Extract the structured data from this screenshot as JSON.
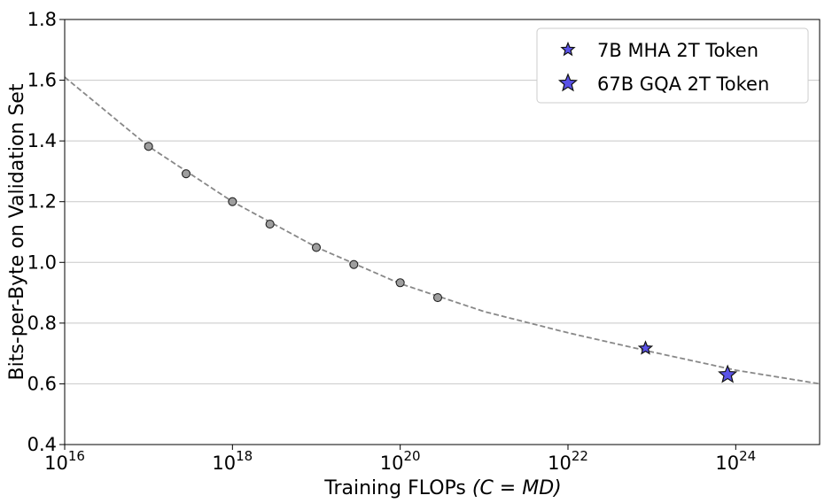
{
  "chart_data": {
    "type": "scatter",
    "title": "",
    "xlabel": "Training FLOPs",
    "xlabel_math": "(C = MD)",
    "ylabel": "Bits-per-Byte on Validation Set",
    "x_scale": "log",
    "xlim": [
      1e+16,
      1e+25
    ],
    "ylim": [
      0.4,
      1.8
    ],
    "x_ticks": [
      {
        "base": "10",
        "exp": "16",
        "value": 1e+16
      },
      {
        "base": "10",
        "exp": "18",
        "value": 1e+18
      },
      {
        "base": "10",
        "exp": "20",
        "value": 1e+20
      },
      {
        "base": "10",
        "exp": "22",
        "value": 1e+22
      },
      {
        "base": "10",
        "exp": "24",
        "value": 1e+24
      }
    ],
    "y_ticks": [
      "0.4",
      "0.6",
      "0.8",
      "1.0",
      "1.2",
      "1.4",
      "1.6",
      "1.8"
    ],
    "grid": "horizontal",
    "legend_position": "top-right",
    "fit_curve": {
      "style": "dashed",
      "color": "#888888",
      "points": [
        {
          "x": 1e+16,
          "y": 1.61
        },
        {
          "x": 1e+17,
          "y": 1.382
        },
        {
          "x": 1e+18,
          "y": 1.2
        },
        {
          "x": 1e+19,
          "y": 1.05
        },
        {
          "x": 1e+20,
          "y": 0.93
        },
        {
          "x": 1e+21,
          "y": 0.838
        },
        {
          "x": 1e+22,
          "y": 0.768
        },
        {
          "x": 1e+23,
          "y": 0.705
        },
        {
          "x": 1e+24,
          "y": 0.645
        },
        {
          "x": 1e+25,
          "y": 0.6
        }
      ]
    },
    "series": [
      {
        "marker": "circle",
        "color": "#9e9e9e",
        "points": [
          {
            "x": 1e+17,
            "y": 1.382
          },
          {
            "x": 2.8e+17,
            "y": 1.292
          },
          {
            "x": 1e+18,
            "y": 1.2
          },
          {
            "x": 2.8e+18,
            "y": 1.126
          },
          {
            "x": 1e+19,
            "y": 1.049
          },
          {
            "x": 2.8e+19,
            "y": 0.993
          },
          {
            "x": 1e+20,
            "y": 0.933
          },
          {
            "x": 2.8e+20,
            "y": 0.884
          }
        ]
      },
      {
        "name": "7B MHA 2T Token",
        "marker": "star",
        "size": "small",
        "color": "#5a52e8",
        "points": [
          {
            "x": 8.4e+22,
            "y": 0.717
          }
        ]
      },
      {
        "name": "67B GQA 2T Token",
        "marker": "star",
        "size": "large",
        "color": "#5a52e8",
        "points": [
          {
            "x": 8e+23,
            "y": 0.63
          }
        ]
      }
    ]
  }
}
